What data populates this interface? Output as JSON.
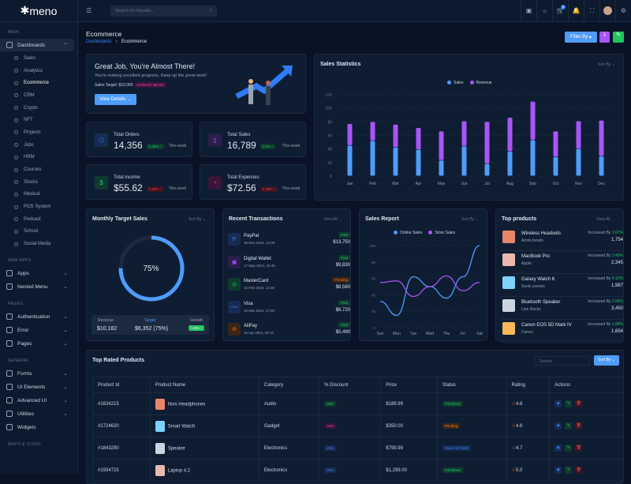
{
  "brand": "meno",
  "sidebar": {
    "sections": {
      "main": "MAIN",
      "webapps": "WEB APPS",
      "pages": "PAGES",
      "general": "GENERAL",
      "maps": "MAPS & ICONS"
    },
    "dashboards": "Dashboards",
    "subitems": [
      "Sales",
      "Analytics",
      "Ecommerce",
      "CRM",
      "Crypto",
      "NFT",
      "Projects",
      "Jobs",
      "HRM",
      "Courses",
      "Stocks",
      "Medical",
      "POS System",
      "Podcast",
      "School",
      "Social Media"
    ],
    "apps": "Apps",
    "nested": "Nested Menu",
    "auth": "Authentication",
    "error": "Error",
    "pages": "Pages",
    "forms": "Forms",
    "ui": "UI Elements",
    "advanced": "Advanced UI",
    "utilities": "Utilities",
    "widgets": "Widgets"
  },
  "topbar": {
    "search_placeholder": "Search for Results...",
    "cart_count": "5"
  },
  "page": {
    "title": "Ecommerce",
    "crumb_root": "Dashboards",
    "crumb_sep": "»",
    "crumb_current": "Ecommerce",
    "filter": "Filter By"
  },
  "hero": {
    "title": "Great Job, You're Almost There!",
    "subtitle": "You're making excellent progress. Keep up the great work!",
    "target": "Sales Target: $10,000",
    "achieved": "Achieved: $8,500",
    "button": "View Details →"
  },
  "stats": [
    {
      "label": "Total Orders",
      "value": "14,356",
      "change": "0.45% ↑",
      "week": "This week"
    },
    {
      "label": "Total Sales",
      "value": "16,789",
      "change": "1.5% ↑",
      "week": "This week"
    },
    {
      "label": "Total income",
      "value": "$55.62",
      "change": "0.25% ↓",
      "week": "This week"
    },
    {
      "label": "Total Expenses",
      "value": "$72.56",
      "change": "0.35% ↓",
      "week": "This week"
    }
  ],
  "sort_by": "Sort By",
  "view_all": "View All →",
  "chart_data": [
    {
      "type": "bar",
      "title": "Sales Statistics",
      "stacked": true,
      "categories": [
        "Jan",
        "Feb",
        "Mar",
        "Apr",
        "May",
        "Jun",
        "Jul",
        "Aug",
        "Sep",
        "Oct",
        "Nov",
        "Dec"
      ],
      "series": [
        {
          "name": "Sales",
          "color": "#4f9cf9",
          "values": [
            45,
            52,
            42,
            39,
            23,
            44,
            18,
            36,
            53,
            28,
            40,
            29
          ]
        },
        {
          "name": "Revenue",
          "color": "#a855f7",
          "values": [
            32,
            28,
            34,
            32,
            43,
            37,
            62,
            50,
            57,
            38,
            41,
            53
          ]
        }
      ],
      "ylim": [
        0,
        120
      ],
      "yticks": [
        0,
        20,
        40,
        60,
        80,
        100,
        120
      ],
      "legend": "top-center"
    },
    {
      "type": "line",
      "title": "Sales Report",
      "categories": [
        "Sun",
        "Mon",
        "Tue",
        "Wed",
        "Thu",
        "Fri",
        "Sat"
      ],
      "series": [
        {
          "name": "Online Sales",
          "color": "#4f9cf9",
          "values": [
            32,
            15,
            62,
            50,
            36,
            62,
            100
          ]
        },
        {
          "name": "Store Sales",
          "color": "#a855f7",
          "values": [
            55,
            57,
            38,
            50,
            63,
            45,
            55
          ]
        }
      ],
      "ylim": [
        0,
        100
      ],
      "yticks": [
        0,
        20,
        40,
        60,
        80,
        100
      ],
      "legend": "top-center"
    }
  ],
  "monthly": {
    "title": "Monthly Target Sales",
    "percent": 75,
    "percent_label": "75%",
    "revenue_label": "Revenue",
    "revenue": "$10,182",
    "target_label": "Target",
    "target": "$6,352 (75%)",
    "growth_label": "Growth",
    "growth": "1.5% ↑"
  },
  "transactions": {
    "title": "Recent Transactions",
    "items": [
      {
        "name": "PayPal",
        "date": "30 Nov 2024, 12:30",
        "status": "Paid",
        "amount": "$13,750"
      },
      {
        "name": "Digital Wallet",
        "date": "17 May 2024, 15:45",
        "status": "Paid",
        "amount": "$9,830"
      },
      {
        "name": "MasterCard",
        "date": "22 Feb 2024, 14:30",
        "status": "Pending",
        "amount": "$8,560"
      },
      {
        "name": "Visa",
        "date": "10 Mar 2024, 17:00",
        "status": "Paid",
        "amount": "$6,720"
      },
      {
        "name": "AliPay",
        "date": "25 Apr 2024, 08:10",
        "status": "Paid",
        "amount": "$5,490"
      }
    ]
  },
  "top_products": {
    "title": "Top products",
    "inc_label": "Increased By",
    "items": [
      {
        "name": "Wireless Headsets",
        "brand": "Amini trends",
        "pct": "1.67%",
        "qty": "1,754"
      },
      {
        "name": "MacBook Pro",
        "brand": "Apple",
        "pct": "3.45%",
        "qty": "2,345"
      },
      {
        "name": "Galaxy Watch 6",
        "brand": "Sonic yseries",
        "pct": "4.12%",
        "qty": "1,987"
      },
      {
        "name": "Bluetooth Speaker",
        "brand": "Lion Rocks",
        "pct": "2.56%",
        "qty": "3,450"
      },
      {
        "name": "Canon EOS 5D Mark IV",
        "brand": "Canon",
        "pct": "1.89%",
        "qty": "1,654"
      }
    ]
  },
  "rated": {
    "title": "Top Rated Products",
    "search_placeholder": "Search",
    "sort": "Sort By",
    "headers": [
      "Product Id",
      "Product Name",
      "Category",
      "% Discount",
      "Price",
      "Status",
      "Rating",
      "Actions"
    ],
    "rows": [
      {
        "id": "#1634215",
        "name": "Nois Headphones",
        "cat": "Audio",
        "disc": "35%",
        "price": "$189.99",
        "status": "Published",
        "rating": "4.8"
      },
      {
        "id": "#1724620",
        "name": "Smart Watch",
        "cat": "Gadget",
        "disc": "15%",
        "price": "$350.00",
        "status": "Pending",
        "rating": "4.6"
      },
      {
        "id": "#1843290",
        "name": "Speaker",
        "cat": "Electronics",
        "disc": "25%",
        "price": "$799.99",
        "status": "Saved as Draft",
        "rating": "4.7"
      },
      {
        "id": "#1934725",
        "name": "Laptop 4.2",
        "cat": "Electronics",
        "disc": "20%",
        "price": "$1,299.00",
        "status": "Published",
        "rating": "5.0"
      }
    ]
  }
}
